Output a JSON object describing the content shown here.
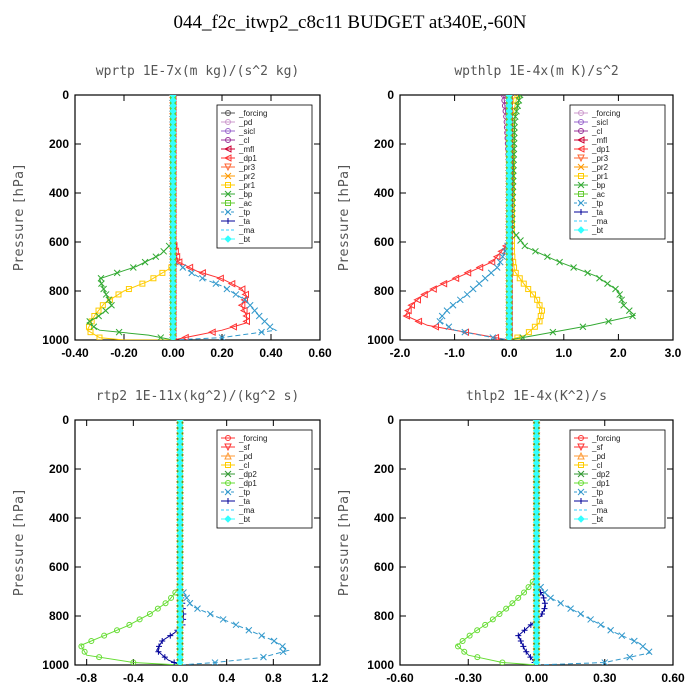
{
  "title": "044_f2c_itwp2_c8c11  BUDGET at340E,-60N",
  "chart_data": [
    {
      "type": "line",
      "title": "wprtp   1E-7x(m kg)/(s^2 kg)",
      "ylabel": "Pressure [hPa]",
      "xlim": [
        -0.4,
        0.6
      ],
      "ylim": [
        1000,
        0
      ],
      "xticks": [
        "-0.40",
        "-0.20",
        "0.00",
        "0.20",
        "0.40",
        "0.60"
      ],
      "xtick_values": [
        -0.4,
        -0.2,
        0.0,
        0.2,
        0.4,
        0.6
      ],
      "yticks": [
        "0",
        "200",
        "400",
        "600",
        "800",
        "1000"
      ],
      "legend_position": "top-right",
      "series": [
        {
          "name": "_forcing",
          "color": "#555555",
          "marker": "o",
          "dashed": false,
          "x": [
            0,
            0,
            0,
            0
          ],
          "y": [
            0,
            500,
            900,
            1000
          ]
        },
        {
          "name": "_pd",
          "color": "#cc99cc",
          "marker": "o",
          "dashed": false,
          "x": [
            0,
            0
          ],
          "y": [
            0,
            1000
          ]
        },
        {
          "name": "_sicl",
          "color": "#9966cc",
          "marker": "o",
          "dashed": false,
          "x": [
            0,
            0
          ],
          "y": [
            0,
            1000
          ]
        },
        {
          "name": "_cl",
          "color": "#993399",
          "marker": "o",
          "dashed": false,
          "x": [
            0,
            0
          ],
          "y": [
            0,
            1000
          ]
        },
        {
          "name": "_mfl",
          "color": "#cc0033",
          "marker": "<",
          "dashed": false,
          "x": [
            0,
            0
          ],
          "y": [
            0,
            1000
          ]
        },
        {
          "name": "_dp1",
          "color": "#ff3333",
          "marker": "<",
          "dashed": false,
          "x": [
            0,
            0,
            0.02,
            0.1,
            0.2,
            0.28,
            0.3,
            0.28,
            0.3,
            0.3,
            0.2,
            0.1,
            0.0
          ],
          "y": [
            0,
            600,
            680,
            720,
            750,
            790,
            820,
            860,
            900,
            930,
            960,
            980,
            1000
          ]
        },
        {
          "name": "_pr3",
          "color": "#ff6633",
          "marker": "v",
          "dashed": false,
          "x": [
            0,
            0
          ],
          "y": [
            0,
            1000
          ]
        },
        {
          "name": "_pr2",
          "color": "#ff9900",
          "marker": "x",
          "dashed": false,
          "x": [
            0,
            0
          ],
          "y": [
            0,
            1000
          ]
        },
        {
          "name": "_pr1",
          "color": "#ffcc00",
          "marker": "s",
          "dashed": false,
          "x": [
            0,
            0,
            -0.1,
            -0.2,
            -0.28,
            -0.32,
            -0.35,
            -0.3,
            -0.2,
            0.0
          ],
          "y": [
            0,
            700,
            760,
            800,
            850,
            900,
            960,
            990,
            1000,
            1000
          ]
        },
        {
          "name": "_bp",
          "color": "#33aa33",
          "marker": "x",
          "dashed": false,
          "x": [
            0,
            0,
            -0.05,
            -0.15,
            -0.3,
            -0.28,
            -0.25,
            -0.3,
            -0.35,
            -0.3,
            -0.1,
            0.0
          ],
          "y": [
            0,
            600,
            650,
            700,
            750,
            800,
            860,
            900,
            930,
            960,
            980,
            1000
          ]
        },
        {
          "name": "_ac",
          "color": "#66cc33",
          "marker": "s",
          "dashed": false,
          "x": [
            0,
            0
          ],
          "y": [
            0,
            1000
          ]
        },
        {
          "name": "_tp",
          "color": "#3399cc",
          "marker": "x",
          "dashed": true,
          "x": [
            0,
            0,
            0.1,
            0.2,
            0.3,
            0.35,
            0.4,
            0.42,
            0.2,
            0.0
          ],
          "y": [
            0,
            680,
            740,
            780,
            840,
            900,
            950,
            960,
            990,
            1000
          ]
        },
        {
          "name": "_ta",
          "color": "#000099",
          "marker": "+",
          "dashed": false,
          "x": [
            0,
            0
          ],
          "y": [
            0,
            1000
          ]
        },
        {
          "name": "_ma",
          "color": "#33ccff",
          "marker": "",
          "dashed": true,
          "x": [
            0,
            0
          ],
          "y": [
            0,
            1000
          ]
        },
        {
          "name": "_bt",
          "color": "#33ffff",
          "marker": "D",
          "dashed": false,
          "x": [
            0,
            0
          ],
          "y": [
            0,
            1000
          ]
        }
      ]
    },
    {
      "type": "line",
      "title": "wpthlp   1E-4x(m K)/s^2",
      "ylabel": "Pressure [hPa]",
      "xlim": [
        -2.0,
        3.0
      ],
      "ylim": [
        1000,
        0
      ],
      "xticks": [
        "-2.0",
        "-1.0",
        "0.0",
        "1.0",
        "2.0",
        "3.0"
      ],
      "xtick_values": [
        -2.0,
        -1.0,
        0.0,
        1.0,
        2.0,
        3.0
      ],
      "yticks": [
        "0",
        "200",
        "400",
        "600",
        "800",
        "1000"
      ],
      "legend_position": "top-right",
      "series": [
        {
          "name": "_forcing",
          "color": "#cc99cc",
          "marker": "o",
          "dashed": false,
          "x": [
            0,
            0
          ],
          "y": [
            0,
            1000
          ]
        },
        {
          "name": "_sicl",
          "color": "#9966cc",
          "marker": "o",
          "dashed": false,
          "x": [
            0,
            0
          ],
          "y": [
            0,
            1000
          ]
        },
        {
          "name": "_cl",
          "color": "#993399",
          "marker": "o",
          "dashed": false,
          "x": [
            -0.1,
            -0.05,
            0,
            0
          ],
          "y": [
            0,
            100,
            300,
            1000
          ]
        },
        {
          "name": "_mfl",
          "color": "#cc0033",
          "marker": "<",
          "dashed": false,
          "x": [
            0,
            0
          ],
          "y": [
            0,
            1000
          ]
        },
        {
          "name": "_dp1",
          "color": "#ff3333",
          "marker": "<",
          "dashed": false,
          "x": [
            0,
            0,
            -0.3,
            -0.8,
            -1.3,
            -1.6,
            -1.8,
            -1.9,
            -1.5,
            -0.5,
            0.0
          ],
          "y": [
            0,
            600,
            680,
            730,
            780,
            820,
            860,
            900,
            940,
            980,
            1000
          ]
        },
        {
          "name": "_pr3",
          "color": "#ff6633",
          "marker": "v",
          "dashed": false,
          "x": [
            0,
            0
          ],
          "y": [
            0,
            1000
          ]
        },
        {
          "name": "_pr2",
          "color": "#ff9900",
          "marker": "x",
          "dashed": false,
          "x": [
            0,
            0
          ],
          "y": [
            0,
            1000
          ]
        },
        {
          "name": "_pr1",
          "color": "#ffcc00",
          "marker": "s",
          "dashed": false,
          "x": [
            0.15,
            0.05,
            0.05,
            0.1,
            0.3,
            0.5,
            0.6,
            0.55,
            0.3,
            0.0
          ],
          "y": [
            0,
            100,
            650,
            720,
            780,
            830,
            880,
            930,
            980,
            1000
          ]
        },
        {
          "name": "_bp",
          "color": "#33aa33",
          "marker": "x",
          "dashed": false,
          "x": [
            0.2,
            0.1,
            0.05,
            0.3,
            0.9,
            1.6,
            2.0,
            2.1,
            2.3,
            1.5,
            0.5,
            0.0
          ],
          "y": [
            0,
            100,
            550,
            620,
            680,
            740,
            800,
            860,
            900,
            940,
            980,
            1000
          ]
        },
        {
          "name": "_ac",
          "color": "#66cc33",
          "marker": "s",
          "dashed": false,
          "x": [
            0,
            0
          ],
          "y": [
            0,
            1000
          ]
        },
        {
          "name": "_tp",
          "color": "#3399cc",
          "marker": "x",
          "dashed": true,
          "x": [
            0,
            0,
            -0.2,
            -0.5,
            -0.8,
            -1.1,
            -1.3,
            -1.0,
            -0.3,
            0.0
          ],
          "y": [
            0,
            600,
            700,
            760,
            820,
            870,
            920,
            960,
            990,
            1000
          ]
        },
        {
          "name": "_ta",
          "color": "#000099",
          "marker": "+",
          "dashed": false,
          "x": [
            0,
            0
          ],
          "y": [
            0,
            1000
          ]
        },
        {
          "name": "_ma",
          "color": "#33ccff",
          "marker": "",
          "dashed": true,
          "x": [
            0,
            0
          ],
          "y": [
            0,
            1000
          ]
        },
        {
          "name": "_bt",
          "color": "#33ffff",
          "marker": "D",
          "dashed": false,
          "x": [
            0,
            0
          ],
          "y": [
            0,
            1000
          ]
        }
      ]
    },
    {
      "type": "line",
      "title": "rtp2   1E-11x(kg^2)/(kg^2 s)",
      "ylabel": "Pressure [hPa]",
      "xlim": [
        -0.9,
        1.2
      ],
      "ylim": [
        1000,
        0
      ],
      "xticks": [
        "-0.8",
        "-0.4",
        "0.0",
        "0.4",
        "0.8",
        "1.2"
      ],
      "xtick_values": [
        -0.8,
        -0.4,
        0.0,
        0.4,
        0.8,
        1.2
      ],
      "yticks": [
        "0",
        "200",
        "400",
        "600",
        "800",
        "1000"
      ],
      "legend_position": "top-right",
      "series": [
        {
          "name": "_forcing",
          "color": "#ff3333",
          "marker": "o",
          "dashed": false,
          "x": [
            0,
            0
          ],
          "y": [
            0,
            1000
          ]
        },
        {
          "name": "_sf",
          "color": "#ff3333",
          "marker": "v",
          "dashed": false,
          "x": [
            0,
            0
          ],
          "y": [
            0,
            1000
          ]
        },
        {
          "name": "_pd",
          "color": "#ff9933",
          "marker": "^",
          "dashed": false,
          "x": [
            0,
            0
          ],
          "y": [
            0,
            1000
          ]
        },
        {
          "name": "_cl",
          "color": "#ffcc00",
          "marker": "s",
          "dashed": false,
          "x": [
            0,
            0
          ],
          "y": [
            0,
            1000
          ]
        },
        {
          "name": "_dp2",
          "color": "#339933",
          "marker": "x",
          "dashed": false,
          "x": [
            0,
            0
          ],
          "y": [
            0,
            1000
          ]
        },
        {
          "name": "_dp1",
          "color": "#66dd33",
          "marker": "o",
          "dashed": false,
          "x": [
            0,
            0,
            -0.1,
            -0.25,
            -0.45,
            -0.65,
            -0.85,
            -0.8,
            -0.4,
            0.0
          ],
          "y": [
            0,
            680,
            740,
            790,
            840,
            880,
            920,
            960,
            990,
            1000
          ]
        },
        {
          "name": "_tp",
          "color": "#3399cc",
          "marker": "x",
          "dashed": true,
          "x": [
            0,
            0,
            0.1,
            0.3,
            0.55,
            0.8,
            0.93,
            0.7,
            0.3,
            0.0
          ],
          "y": [
            0,
            680,
            760,
            800,
            850,
            900,
            940,
            970,
            990,
            1000
          ]
        },
        {
          "name": "_ta",
          "color": "#000099",
          "marker": "+",
          "dashed": false,
          "x": [
            0,
            0,
            0.02,
            0.03,
            0.02,
            -0.05,
            -0.15,
            -0.2,
            -0.1,
            0.0
          ],
          "y": [
            0,
            700,
            750,
            800,
            840,
            870,
            900,
            940,
            980,
            1000
          ]
        },
        {
          "name": "_ma",
          "color": "#33ccff",
          "marker": "",
          "dashed": true,
          "x": [
            0,
            0
          ],
          "y": [
            0,
            1000
          ]
        },
        {
          "name": "_bt",
          "color": "#33ffff",
          "marker": "D",
          "dashed": false,
          "x": [
            0,
            0
          ],
          "y": [
            0,
            1000
          ]
        }
      ]
    },
    {
      "type": "line",
      "title": "thlp2   1E-4x(K^2)/s",
      "ylabel": "Pressure [hPa]",
      "xlim": [
        -0.6,
        0.6
      ],
      "ylim": [
        1000,
        0
      ],
      "xticks": [
        "-0.60",
        "-0.30",
        "0.00",
        "0.30",
        "0.60"
      ],
      "xtick_values": [
        -0.6,
        -0.3,
        0.0,
        0.3,
        0.6
      ],
      "yticks": [
        "0",
        "200",
        "400",
        "600",
        "800",
        "1000"
      ],
      "legend_position": "top-right",
      "series": [
        {
          "name": "_forcing",
          "color": "#ff3333",
          "marker": "o",
          "dashed": false,
          "x": [
            0,
            0
          ],
          "y": [
            0,
            1000
          ]
        },
        {
          "name": "_sf",
          "color": "#ff3333",
          "marker": "v",
          "dashed": false,
          "x": [
            0,
            0
          ],
          "y": [
            0,
            1000
          ]
        },
        {
          "name": "_pd",
          "color": "#ff9933",
          "marker": "^",
          "dashed": false,
          "x": [
            0,
            0
          ],
          "y": [
            0,
            1000
          ]
        },
        {
          "name": "_cl",
          "color": "#ffcc00",
          "marker": "s",
          "dashed": false,
          "x": [
            0,
            0
          ],
          "y": [
            0,
            1000
          ]
        },
        {
          "name": "_dp2",
          "color": "#339933",
          "marker": "x",
          "dashed": false,
          "x": [
            0,
            0
          ],
          "y": [
            0,
            1000
          ]
        },
        {
          "name": "_dp1",
          "color": "#66dd33",
          "marker": "o",
          "dashed": false,
          "x": [
            0,
            0,
            -0.05,
            -0.12,
            -0.2,
            -0.28,
            -0.35,
            -0.3,
            -0.15,
            0.0
          ],
          "y": [
            0,
            640,
            700,
            760,
            820,
            870,
            920,
            960,
            990,
            1000
          ]
        },
        {
          "name": "_tp",
          "color": "#3399cc",
          "marker": "x",
          "dashed": true,
          "x": [
            0,
            0,
            0.05,
            0.15,
            0.25,
            0.35,
            0.45,
            0.5,
            0.3,
            0.0
          ],
          "y": [
            0,
            660,
            720,
            770,
            820,
            870,
            910,
            950,
            990,
            1000
          ]
        },
        {
          "name": "_ta",
          "color": "#000099",
          "marker": "+",
          "dashed": false,
          "x": [
            0,
            0,
            0.03,
            0.04,
            0.02,
            -0.03,
            -0.08,
            -0.05,
            0.0
          ],
          "y": [
            0,
            680,
            720,
            760,
            800,
            840,
            880,
            940,
            1000
          ]
        },
        {
          "name": "_ma",
          "color": "#33ccff",
          "marker": "",
          "dashed": true,
          "x": [
            0,
            0
          ],
          "y": [
            0,
            1000
          ]
        },
        {
          "name": "_bt",
          "color": "#33ffff",
          "marker": "D",
          "dashed": false,
          "x": [
            0,
            0
          ],
          "y": [
            0,
            1000
          ]
        }
      ]
    }
  ]
}
